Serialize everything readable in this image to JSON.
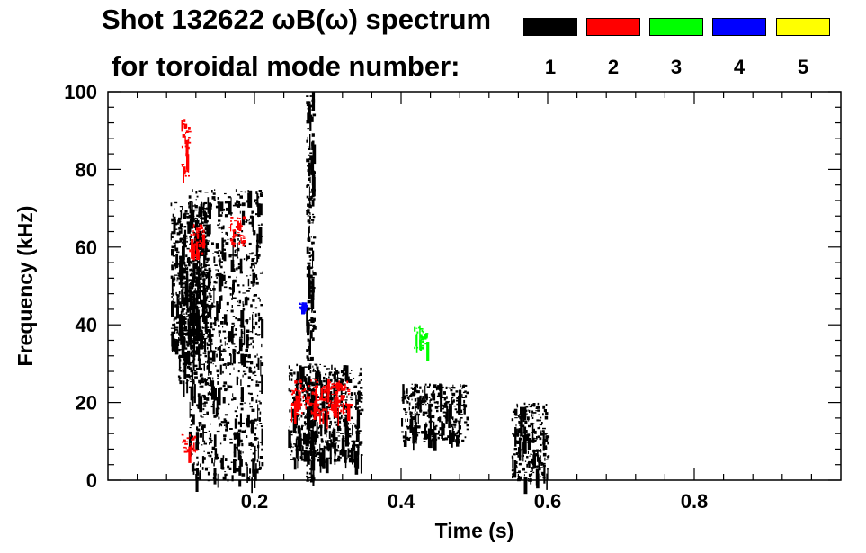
{
  "header": {
    "title": "Shot 132622 ωB(ω) spectrum",
    "subtitle": "for toroidal mode number:"
  },
  "legend": [
    {
      "mode": "1",
      "color": "#000000"
    },
    {
      "mode": "2",
      "color": "#ff0000"
    },
    {
      "mode": "3",
      "color": "#00ff00"
    },
    {
      "mode": "4",
      "color": "#0000ff"
    },
    {
      "mode": "5",
      "color": "#ffff00"
    }
  ],
  "chart_data": {
    "type": "heatmap",
    "title": "Shot 132622 ωB(ω) spectrum",
    "xlabel": "Time (s)",
    "ylabel": "Frequency (kHz)",
    "xlim": [
      0.0,
      1.0
    ],
    "ylim": [
      0,
      100
    ],
    "x_ticks": [
      0.2,
      0.4,
      0.6,
      0.8
    ],
    "x_tick_labels": [
      "0.2",
      "0.4",
      "0.6",
      "0.8"
    ],
    "y_ticks": [
      0,
      20,
      40,
      60,
      80,
      100
    ],
    "y_tick_labels": [
      "0",
      "20",
      "40",
      "60",
      "80",
      "100"
    ],
    "series": [
      {
        "name": "n=1",
        "color": "#000000",
        "regions": [
          {
            "t": [
              0.085,
              0.135
            ],
            "f": [
              35,
              72
            ]
          },
          {
            "t": [
              0.095,
              0.14
            ],
            "f": [
              25,
              55
            ]
          },
          {
            "t": [
              0.11,
              0.21
            ],
            "f": [
              0,
              75
            ]
          },
          {
            "t": [
              0.245,
              0.345
            ],
            "f": [
              5,
              30
            ]
          },
          {
            "t": [
              0.4,
              0.49
            ],
            "f": [
              10,
              25
            ]
          },
          {
            "t": [
              0.27,
              0.28
            ],
            "f": [
              0,
              100
            ]
          },
          {
            "t": [
              0.55,
              0.6
            ],
            "f": [
              0,
              20
            ]
          }
        ]
      },
      {
        "name": "n=2",
        "color": "#ff0000",
        "regions": [
          {
            "t": [
              0.1,
              0.11
            ],
            "f": [
              78,
              93
            ]
          },
          {
            "t": [
              0.11,
              0.13
            ],
            "f": [
              58,
              66
            ]
          },
          {
            "t": [
              0.165,
              0.185
            ],
            "f": [
              60,
              68
            ]
          },
          {
            "t": [
              0.25,
              0.33
            ],
            "f": [
              17,
              26
            ]
          },
          {
            "t": [
              0.1,
              0.12
            ],
            "f": [
              7,
              12
            ]
          }
        ]
      },
      {
        "name": "n=3",
        "color": "#00ff00",
        "regions": [
          {
            "t": [
              0.415,
              0.435
            ],
            "f": [
              34,
              40
            ]
          }
        ]
      },
      {
        "name": "n=4",
        "color": "#0000ff",
        "regions": [
          {
            "t": [
              0.26,
              0.27
            ],
            "f": [
              44,
              46
            ]
          }
        ]
      },
      {
        "name": "n=5",
        "color": "#ffff00",
        "regions": []
      }
    ]
  }
}
